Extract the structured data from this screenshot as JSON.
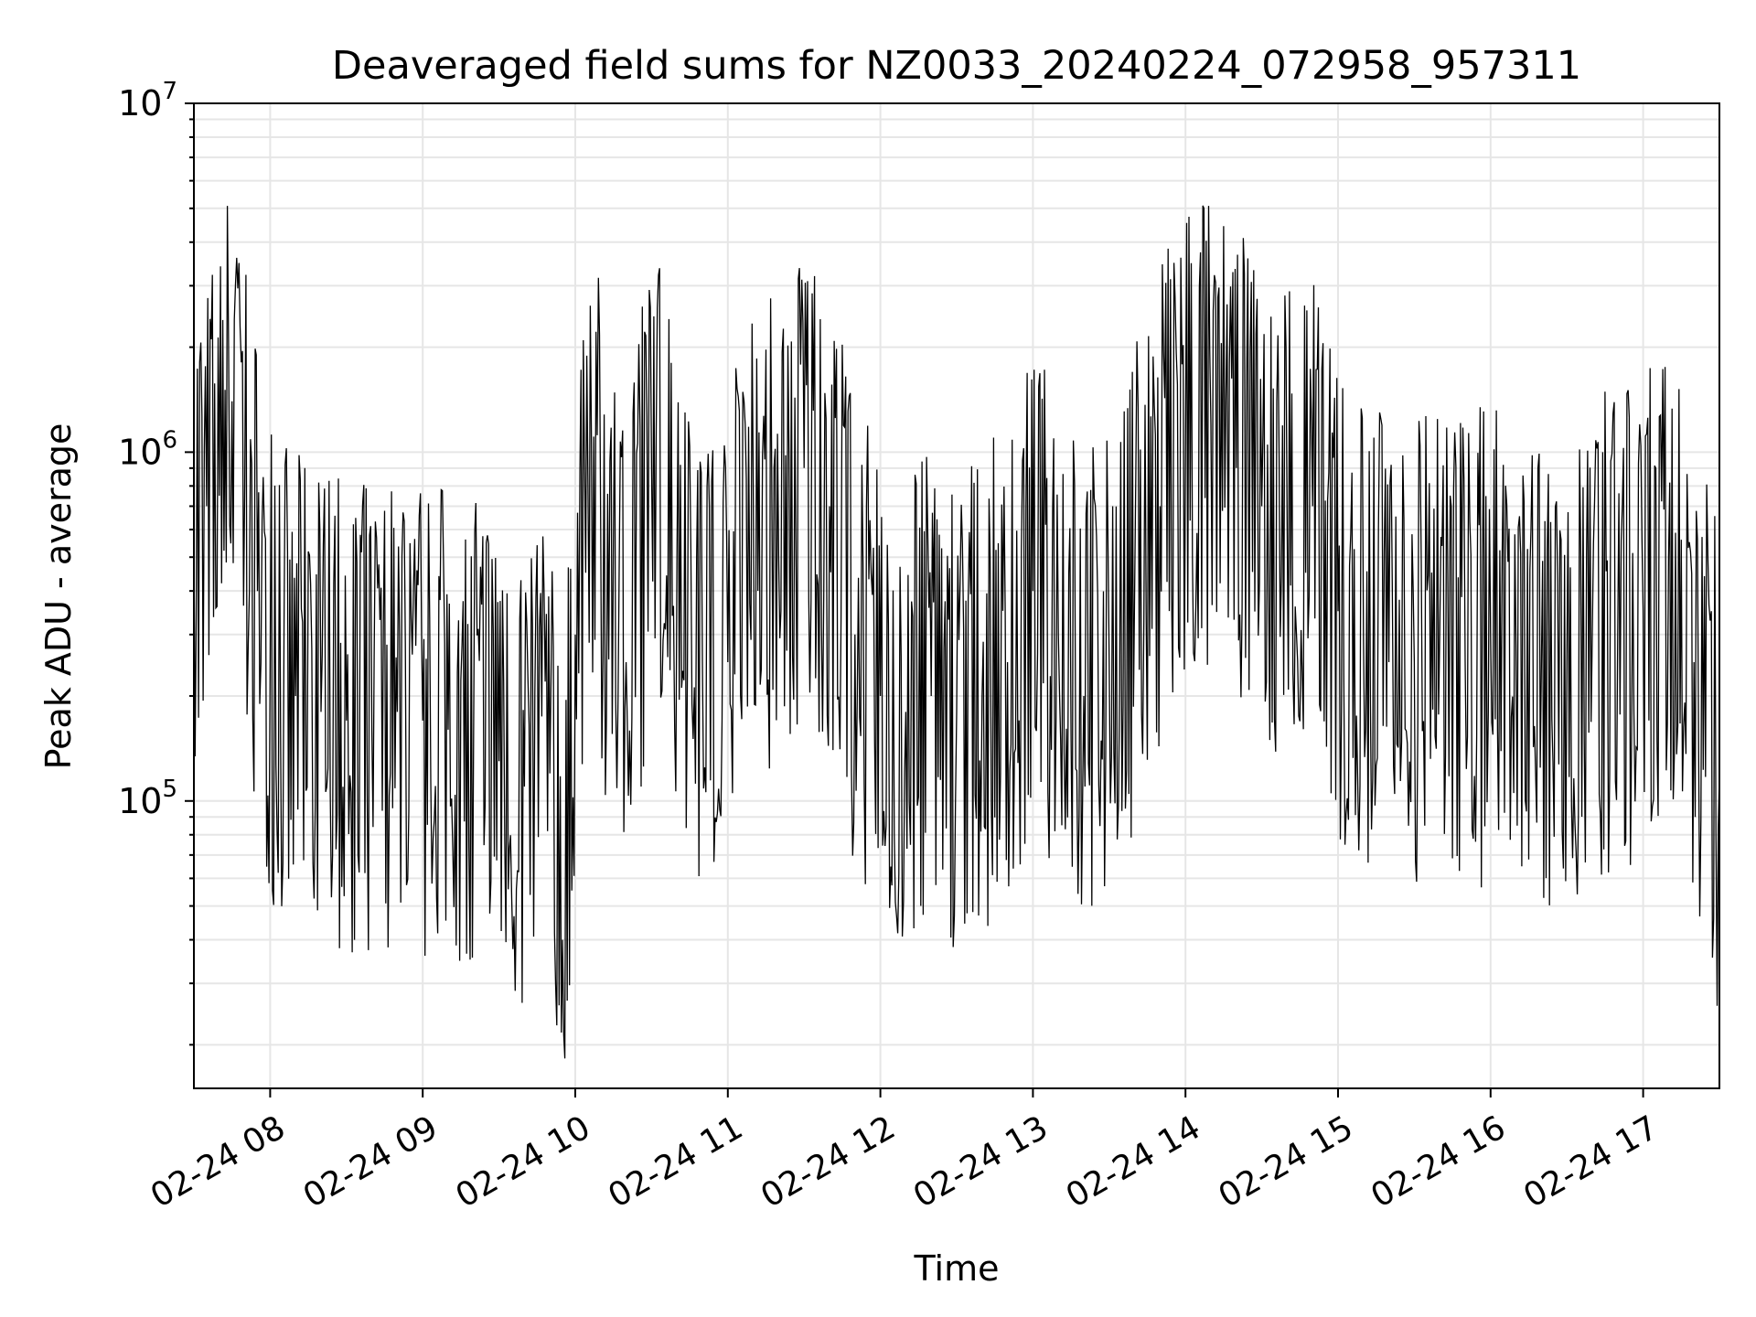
{
  "chart_data": {
    "type": "line",
    "title": "Deaveraged field sums for NZ0033_20240224_072958_957311",
    "xlabel": "Time",
    "ylabel": "Peak ADU - average",
    "y_scale": "log",
    "ylim": [
      15000,
      10000000
    ],
    "xlim": [
      "2024-02-24 07:30",
      "2024-02-24 17:30"
    ],
    "grid": true,
    "x_tick_labels": [
      "02-24 08",
      "02-24 09",
      "02-24 10",
      "02-24 11",
      "02-24 12",
      "02-24 13",
      "02-24 14",
      "02-24 15",
      "02-24 16",
      "02-24 17"
    ],
    "y_tick_labels": [
      {
        "base": "10",
        "exp": "5"
      },
      {
        "base": "10",
        "exp": "6"
      },
      {
        "base": "10",
        "exp": "7"
      }
    ],
    "line_color": "#000000",
    "series": [
      {
        "x": [
          "2024-02-24 07:30",
          "2024-02-24 07:35",
          "2024-02-24 07:40",
          "2024-02-24 07:45",
          "2024-02-24 07:50",
          "2024-02-24 07:55",
          "2024-02-24 08:00",
          "2024-02-24 08:10",
          "2024-02-24 08:20",
          "2024-02-24 08:30",
          "2024-02-24 08:40",
          "2024-02-24 08:50",
          "2024-02-24 09:00",
          "2024-02-24 09:10",
          "2024-02-24 09:20",
          "2024-02-24 09:30",
          "2024-02-24 09:40",
          "2024-02-24 09:50",
          "2024-02-24 09:55",
          "2024-02-24 10:00",
          "2024-02-24 10:05",
          "2024-02-24 10:10",
          "2024-02-24 10:20",
          "2024-02-24 10:30",
          "2024-02-24 10:40",
          "2024-02-24 10:50",
          "2024-02-24 11:00",
          "2024-02-24 11:10",
          "2024-02-24 11:20",
          "2024-02-24 11:30",
          "2024-02-24 11:40",
          "2024-02-24 11:50",
          "2024-02-24 12:00",
          "2024-02-24 12:10",
          "2024-02-24 12:20",
          "2024-02-24 12:30",
          "2024-02-24 12:40",
          "2024-02-24 12:50",
          "2024-02-24 13:00",
          "2024-02-24 13:10",
          "2024-02-24 13:20",
          "2024-02-24 13:30",
          "2024-02-24 13:40",
          "2024-02-24 13:50",
          "2024-02-24 14:00",
          "2024-02-24 14:10",
          "2024-02-24 14:20",
          "2024-02-24 14:30",
          "2024-02-24 14:40",
          "2024-02-24 14:50",
          "2024-02-24 15:00",
          "2024-02-24 15:10",
          "2024-02-24 15:20",
          "2024-02-24 15:30",
          "2024-02-24 15:40",
          "2024-02-24 15:50",
          "2024-02-24 16:00",
          "2024-02-24 16:10",
          "2024-02-24 16:20",
          "2024-02-24 16:30",
          "2024-02-24 16:40",
          "2024-02-24 16:50",
          "2024-02-24 17:00",
          "2024-02-24 17:10",
          "2024-02-24 17:20",
          "2024-02-24 17:30"
        ],
        "y": [
          600000,
          700000,
          750000,
          1400000,
          800000,
          400000,
          250000,
          200000,
          180000,
          170000,
          160000,
          180000,
          170000,
          160000,
          150000,
          130000,
          110000,
          120000,
          40000,
          300000,
          800000,
          600000,
          250000,
          900000,
          500000,
          250000,
          250000,
          800000,
          500000,
          900000,
          700000,
          300000,
          200000,
          180000,
          200000,
          180000,
          200000,
          250000,
          400000,
          300000,
          200000,
          250000,
          400000,
          700000,
          1000000,
          1200000,
          900000,
          700000,
          600000,
          700000,
          350000,
          300000,
          250000,
          250000,
          300000,
          250000,
          300000,
          280000,
          250000,
          250000,
          300000,
          300000,
          350000,
          500000,
          250000,
          120000
        ]
      }
    ]
  }
}
